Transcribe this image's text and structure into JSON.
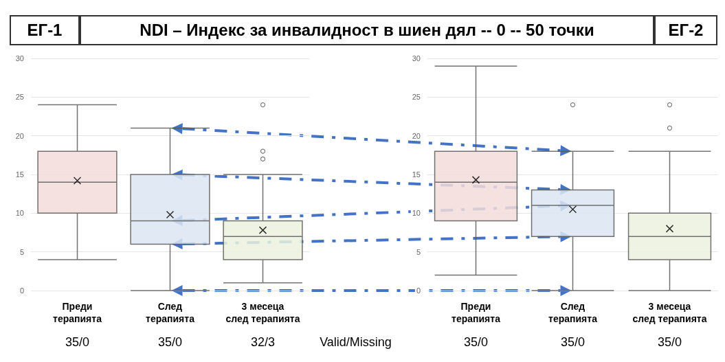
{
  "chart_data": [
    {
      "type": "box",
      "title": "NDI – Индекс за инвалидност в шиен дял -- 0 -- 50 точки",
      "subtitle": "ЕГ-1",
      "categories": [
        "Преди\nтерапията",
        "След\nтерапията",
        "3 месеца\nслед терапията"
      ],
      "colors": [
        "#f2dcdb",
        "#dce6f2",
        "#ebf1de"
      ],
      "boxes": [
        {
          "low": 4,
          "q1": 10,
          "median": 14,
          "q3": 18,
          "high": 24,
          "mean": 14.2
        },
        {
          "low": 0,
          "q1": 6,
          "median": 9,
          "q3": 15,
          "high": 21,
          "mean": 9.8
        },
        {
          "low": 1,
          "q1": 4,
          "median": 7,
          "q3": 9,
          "high": 15,
          "mean": 7.8,
          "outliers": [
            17,
            18,
            24
          ]
        }
      ],
      "ylim": [
        0,
        30
      ],
      "yticks": [
        0,
        5,
        10,
        15,
        20,
        25,
        30
      ],
      "grid": "y",
      "annotations": [
        "35/0",
        "35/0",
        "32/3",
        "Valid/Missing"
      ]
    },
    {
      "type": "box",
      "subtitle": "ЕГ-2",
      "categories": [
        "Преди\nтерапията",
        "След\nтерапията",
        "3 месеца\nслед терапията"
      ],
      "colors": [
        "#f2dcdb",
        "#dce6f2",
        "#ebf1de"
      ],
      "boxes": [
        {
          "low": 2,
          "q1": 9,
          "median": 14,
          "q3": 18,
          "high": 29,
          "mean": 14.3
        },
        {
          "low": 0,
          "q1": 7,
          "median": 11,
          "q3": 13,
          "high": 18,
          "mean": 10.5,
          "outliers": [
            24
          ]
        },
        {
          "low": 0,
          "q1": 4,
          "median": 7,
          "q3": 10,
          "high": 18,
          "mean": 8,
          "outliers": [
            21,
            24
          ]
        }
      ],
      "ylim": [
        0,
        30
      ],
      "yticks": [
        0,
        5,
        10,
        15,
        20,
        25,
        30
      ],
      "grid": "y",
      "annotations": [
        "35/0",
        "35/0",
        "35/0"
      ]
    }
  ]
}
